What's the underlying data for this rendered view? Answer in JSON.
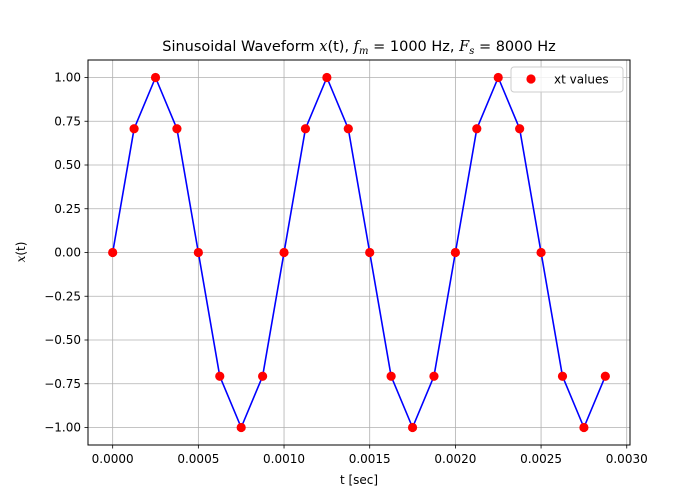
{
  "chart_data": {
    "type": "line",
    "title_parts": {
      "prefix": "Sinusoidal Waveform ",
      "x": "x",
      "t": "(t)",
      "sep1": ", ",
      "f": "f",
      "m": "m",
      "eq1": " = 1000 Hz, ",
      "F": "F",
      "s": "s",
      "eq2": " = 8000 Hz"
    },
    "xlabel": "t [sec]",
    "ylabel_parts": {
      "x": "x",
      "t": "(t)"
    },
    "xlim": [
      -0.000144,
      0.003019
    ],
    "ylim": [
      -1.1,
      1.1
    ],
    "xticks": [
      0.0,
      0.0005,
      0.001,
      0.0015,
      0.002,
      0.0025,
      0.003
    ],
    "xtick_labels": [
      "0.0000",
      "0.0005",
      "0.0010",
      "0.0015",
      "0.0020",
      "0.0025",
      "0.0030"
    ],
    "yticks": [
      -1.0,
      -0.75,
      -0.5,
      -0.25,
      0.0,
      0.25,
      0.5,
      0.75,
      1.0
    ],
    "ytick_labels": [
      "−1.00",
      "−0.75",
      "−0.50",
      "−0.25",
      "0.00",
      "0.25",
      "0.50",
      "0.75",
      "1.00"
    ],
    "grid": true,
    "legend_position": "top-right",
    "series": [
      {
        "name": "xt values",
        "line_color": "#0000ff",
        "marker_color": "#ff0000",
        "x": [
          0.0,
          0.000125,
          0.00025,
          0.000375,
          0.0005,
          0.000625,
          0.00075,
          0.000875,
          0.001,
          0.001125,
          0.00125,
          0.001375,
          0.0015,
          0.001625,
          0.00175,
          0.001875,
          0.002,
          0.002125,
          0.00225,
          0.002375,
          0.0025,
          0.002625,
          0.00275,
          0.002875
        ],
        "y": [
          0.0,
          0.707,
          1.0,
          0.707,
          0.0,
          -0.707,
          -1.0,
          -0.707,
          0.0,
          0.707,
          1.0,
          0.707,
          0.0,
          -0.707,
          -1.0,
          -0.707,
          0.0,
          0.707,
          1.0,
          0.707,
          0.0,
          -0.707,
          -1.0,
          -0.707
        ]
      }
    ]
  }
}
